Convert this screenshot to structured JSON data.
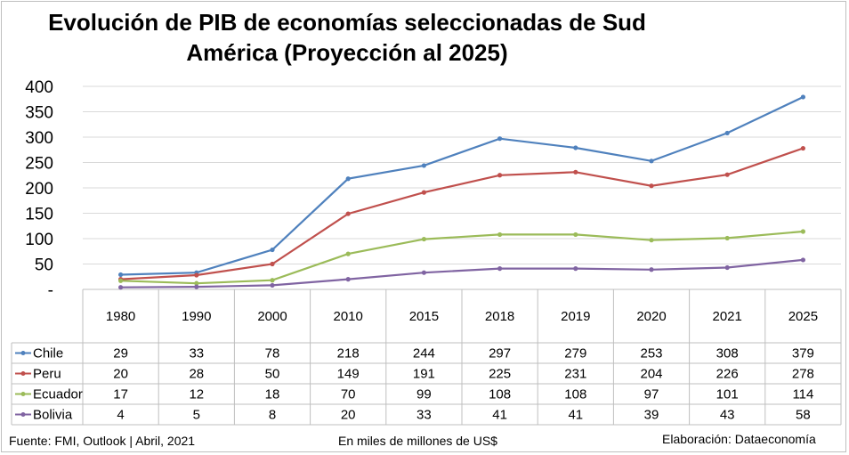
{
  "title_line1": "Evolución de PIB de economías seleccionadas de Sud",
  "title_line2": "América (Proyección al 2025)",
  "footer": {
    "source": "Fuente: FMI, Outlook | Abril, 2021",
    "unit": "En miles de millones de US$",
    "credit": "Elaboración: Dataeconomía"
  },
  "chart_data": {
    "type": "line",
    "title": "Evolución de PIB de economías seleccionadas de Sud América (Proyección al 2025)",
    "categories": [
      "1980",
      "1990",
      "2000",
      "2010",
      "2015",
      "2018",
      "2019",
      "2020",
      "2021",
      "2025"
    ],
    "y_ticks": [
      "400",
      "350",
      "300",
      "250",
      "200",
      "150",
      "100",
      "50",
      "-"
    ],
    "ylim": [
      0,
      400
    ],
    "grid": true,
    "legend": "data-table-left",
    "series": [
      {
        "name": "Chile",
        "color": "#4f81bd",
        "values": [
          29,
          33,
          78,
          218,
          244,
          297,
          279,
          253,
          308,
          379
        ]
      },
      {
        "name": "Peru",
        "color": "#c0504d",
        "values": [
          20,
          28,
          50,
          149,
          191,
          225,
          231,
          204,
          226,
          278
        ]
      },
      {
        "name": "Ecuador",
        "color": "#9bbb59",
        "values": [
          17,
          12,
          18,
          70,
          99,
          108,
          108,
          97,
          101,
          114
        ]
      },
      {
        "name": "Bolivia",
        "color": "#8064a2",
        "values": [
          4,
          5,
          8,
          20,
          33,
          41,
          41,
          39,
          43,
          58
        ]
      }
    ]
  }
}
